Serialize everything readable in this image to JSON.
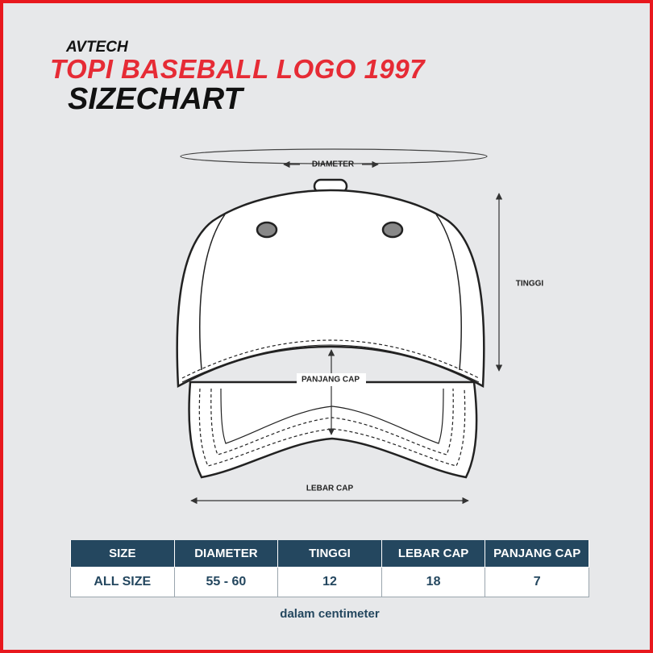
{
  "header": {
    "brand": "AVTECH",
    "title": "TOPI BASEBALL LOGO 1997",
    "subtitle": "SIZECHART"
  },
  "diagram": {
    "diameter": "DIAMETER",
    "height": "TINGGI",
    "brim_length": "PANJANG CAP",
    "brim_width": "LEBAR CAP"
  },
  "table": {
    "columns": [
      "SIZE",
      "DIAMETER",
      "TINGGI",
      "LEBAR CAP",
      "PANJANG CAP"
    ],
    "rows": [
      [
        "ALL SIZE",
        "55 - 60",
        "12",
        "18",
        "7"
      ]
    ]
  },
  "note": "dalam centimeter"
}
